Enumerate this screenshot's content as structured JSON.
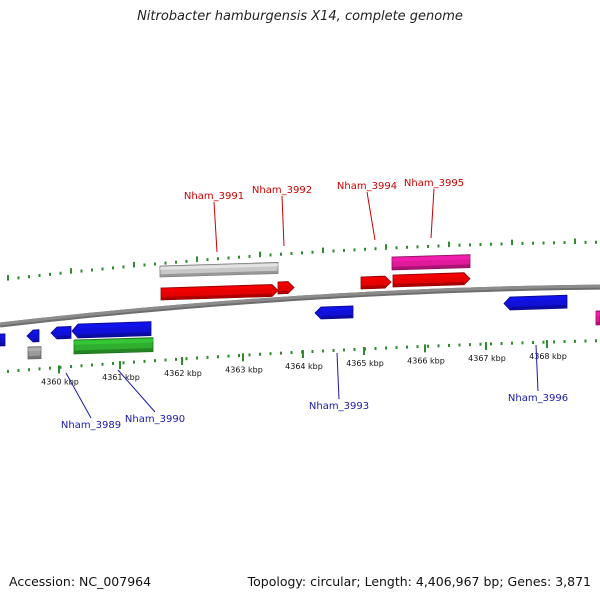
{
  "title": "Nitrobacter hamburgensis X14, complete genome",
  "footer": {
    "accession": "Accession: NC_007964",
    "summary": "Topology: circular; Length: 4,406,967 bp; Genes: 3,871"
  },
  "colors": {
    "forward_label": "#cc0000",
    "reverse_label": "#1a1aa6",
    "backbone": "#8c8c8c",
    "ticks": "#2e8b2e"
  },
  "ruler": [
    "4360 kbp",
    "4361 kbp",
    "4362 kbp",
    "4363 kbp",
    "4364 kbp",
    "4365 kbp",
    "4366 kbp",
    "4367 kbp",
    "4368 kbp"
  ],
  "gene_labels": {
    "forward": [
      "Nham_3991",
      "Nham_3992",
      "Nham_3994",
      "Nham_3995"
    ],
    "reverse": [
      "Nham_3989",
      "Nham_3990",
      "Nham_3993",
      "Nham_3996"
    ]
  },
  "legend_colors": {
    "red": "#e60000",
    "blue": "#1010d8",
    "green": "#2fae2f",
    "gray": "#9a9a9a",
    "lightgray": "#c8c8c8",
    "pink": "#e01a9a"
  }
}
